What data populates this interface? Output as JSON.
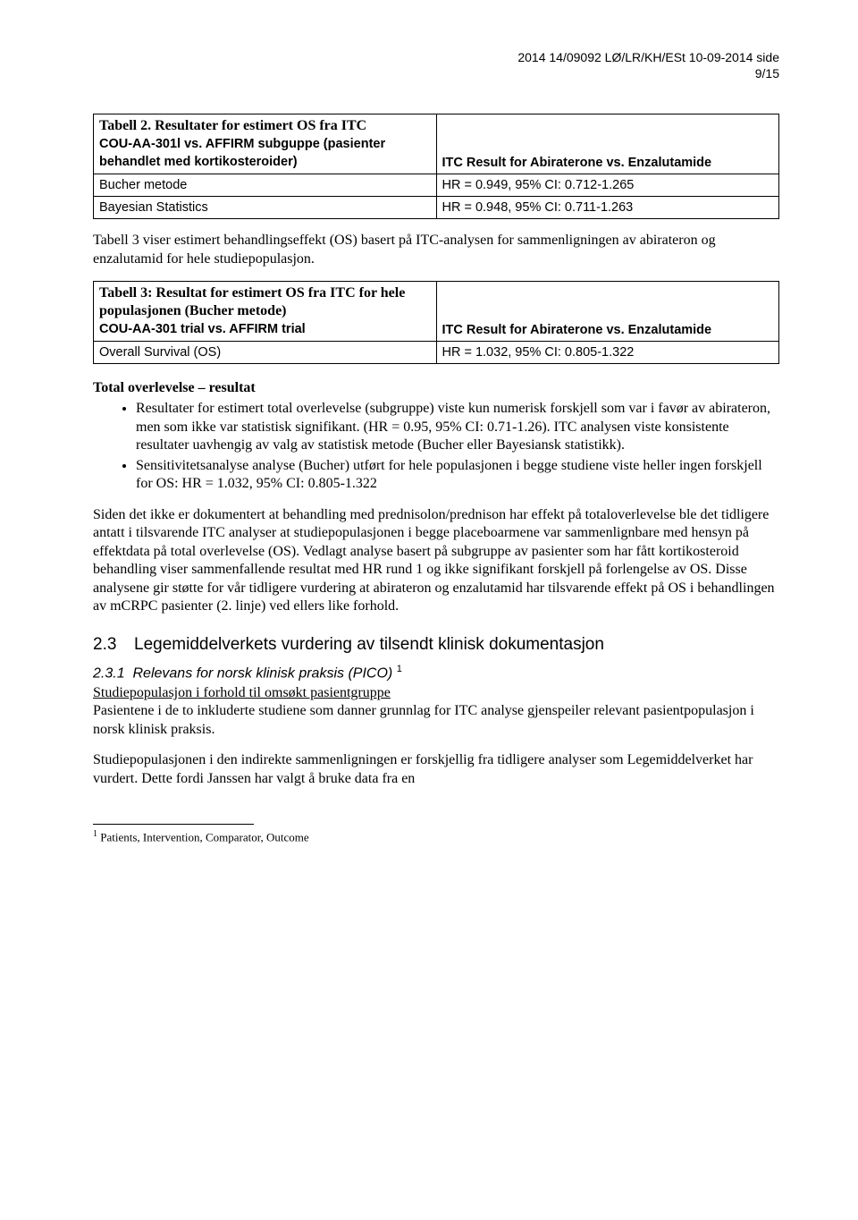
{
  "header": {
    "line1": "2014 14/09092   LØ/LR/KH/ESt        10-09-2014           side",
    "line2": "9/15"
  },
  "table2": {
    "caption": "Tabell 2. Resultater for estimert OS fra ITC",
    "headerLeft1": "COU-AA-301l vs. AFFIRM subguppe (pasienter",
    "headerLeft2": "behandlet med kortikosteroider)",
    "headerRight": "ITC Result  for Abiraterone vs. Enzalutamide",
    "rows": [
      {
        "l": "Bucher metode",
        "r": "HR = 0.949, 95% CI: 0.712-1.265"
      },
      {
        "l": "Bayesian Statistics",
        "r": "HR = 0.948, 95% CI: 0.711-1.263"
      }
    ]
  },
  "para1": "Tabell 3 viser estimert behandlingseffekt (OS) basert på ITC-analysen for sammenligningen av abirateron og enzalutamid for hele studiepopulasjon.",
  "table3": {
    "caption": "Tabell 3: Resultat for estimert OS fra ITC for hele populasjonen (Bucher metode)",
    "headerLeft": "COU-AA-301 trial vs. AFFIRM trial",
    "headerRight": "ITC Result  for Abiraterone vs. Enzalutamide",
    "rows": [
      {
        "l": "Overall Survival (OS)",
        "r": "HR = 1.032, 95% CI: 0.805-1.322"
      }
    ]
  },
  "h_total": "Total overlevelse – resultat",
  "bullet1": "Resultater for estimert total overlevelse (subgruppe) viste kun numerisk forskjell som var i favør av abirateron, men som ikke var statistisk signifikant. (HR = 0.95, 95% CI: 0.71-1.26). ITC analysen viste konsistente resultater uavhengig av valg av statistisk metode (Bucher eller Bayesiansk statistikk).",
  "bullet2": "Sensitivitetsanalyse analyse (Bucher) utført for hele populasjonen i begge studiene viste heller ingen forskjell for OS: HR = 1.032, 95% CI: 0.805-1.322",
  "para2": "Siden det ikke er dokumentert at behandling med prednisolon/prednison har effekt på totaloverlevelse ble det tidligere antatt i tilsvarende ITC analyser at studiepopulasjonen i begge placeboarmene var sammenlignbare med hensyn på effektdata på total overlevelse (OS). Vedlagt analyse basert på subgruppe av pasienter som har fått kortikosteroid behandling viser sammenfallende resultat med HR rund 1 og ikke signifikant forskjell på forlengelse av OS. Disse analysene gir støtte for vår tidligere vurdering at abirateron og enzalutamid har tilsvarende effekt på OS i behandlingen av mCRPC pasienter (2. linje) ved ellers like forhold.",
  "sec23": {
    "num": "2.3",
    "title": "Legemiddelverkets vurdering av tilsendt klinisk dokumentasjon"
  },
  "sec231": {
    "num": "2.3.1",
    "title": "Relevans for norsk klinisk praksis (PICO)",
    "supref": "1"
  },
  "para3_u": "Studiepopulasjon i forhold til omsøkt pasientgruppe",
  "para3": "Pasientene i de to inkluderte studiene som danner grunnlag for ITC analyse gjenspeiler relevant pasientpopulasjon i norsk klinisk praksis.",
  "para4": "Studiepopulasjonen i den indirekte sammenligningen er forskjellig fra tidligere analyser som Legemiddelverket har vurdert. Dette fordi Janssen har valgt å bruke data fra en",
  "footnote": {
    "num": "1",
    "text": " Patients, Intervention, Comparator, Outcome"
  }
}
